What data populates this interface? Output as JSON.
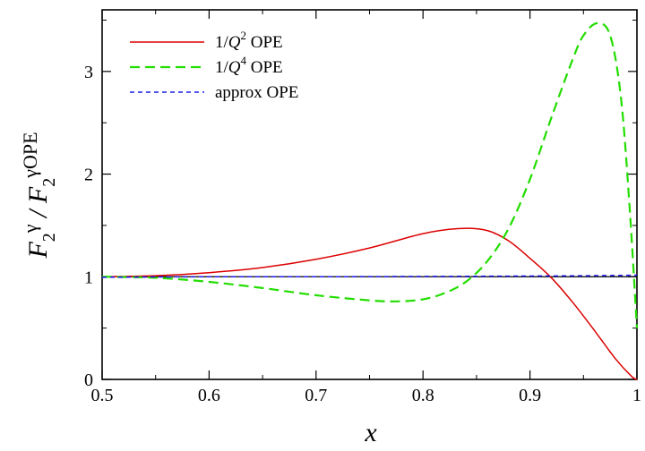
{
  "chart_data": {
    "type": "line",
    "xlabel": "x",
    "ylabel": "F2γ / F2γOPE",
    "ylabel_parts": {
      "f1": "F",
      "s1": "2",
      "p1": "γ",
      "slash": " / ",
      "f2": "F",
      "s2": "2",
      "p2": "γOPE"
    },
    "xlim": [
      0.5,
      1.0
    ],
    "ylim": [
      0,
      3.6
    ],
    "x_ticks": [
      0.5,
      0.6,
      0.7,
      0.8,
      0.9,
      1.0
    ],
    "x_tick_labels": [
      "0.5",
      "0.6",
      "0.7",
      "0.8",
      "0.9",
      "1"
    ],
    "y_ticks": [
      0,
      1,
      2,
      3
    ],
    "y_tick_labels": [
      "0",
      "1",
      "2",
      "3"
    ],
    "reference_line": {
      "y": 1,
      "color": "#000000"
    },
    "legend_position": "top-left",
    "grid": false,
    "series": [
      {
        "name": "1/Q2 OPE",
        "name_parts": {
          "pre": "1/",
          "var": "Q",
          "exp": "2",
          "post": " OPE"
        },
        "color": "#dd0000",
        "dash": "solid",
        "x": [
          0.5,
          0.55,
          0.6,
          0.65,
          0.7,
          0.75,
          0.8,
          0.835,
          0.86,
          0.88,
          0.9,
          0.92,
          0.94,
          0.96,
          0.98,
          0.995,
          1.0
        ],
        "y": [
          1.0,
          1.01,
          1.04,
          1.09,
          1.17,
          1.28,
          1.42,
          1.47,
          1.45,
          1.35,
          1.18,
          0.99,
          0.75,
          0.48,
          0.2,
          0.03,
          0.0
        ]
      },
      {
        "name": "1/Q4 OPE",
        "name_parts": {
          "pre": "1/",
          "var": "Q",
          "exp": "4",
          "post": " OPE"
        },
        "color": "#22dd00",
        "dash": "long-dash",
        "x": [
          0.5,
          0.55,
          0.6,
          0.65,
          0.7,
          0.75,
          0.775,
          0.8,
          0.82,
          0.84,
          0.86,
          0.88,
          0.9,
          0.92,
          0.94,
          0.95,
          0.963,
          0.975,
          0.985,
          0.993,
          1.0
        ],
        "y": [
          1.0,
          0.99,
          0.95,
          0.89,
          0.82,
          0.77,
          0.76,
          0.78,
          0.84,
          0.95,
          1.15,
          1.47,
          1.95,
          2.55,
          3.12,
          3.35,
          3.47,
          3.35,
          2.75,
          1.7,
          0.5
        ]
      },
      {
        "name": "approx OPE",
        "color": "#1a1aee",
        "dash": "short-dash",
        "x": [
          0.5,
          0.6,
          0.7,
          0.8,
          0.9,
          0.95,
          1.0
        ],
        "y": [
          0.995,
          1.0,
          1.0,
          1.003,
          1.007,
          1.01,
          1.015
        ]
      }
    ]
  }
}
